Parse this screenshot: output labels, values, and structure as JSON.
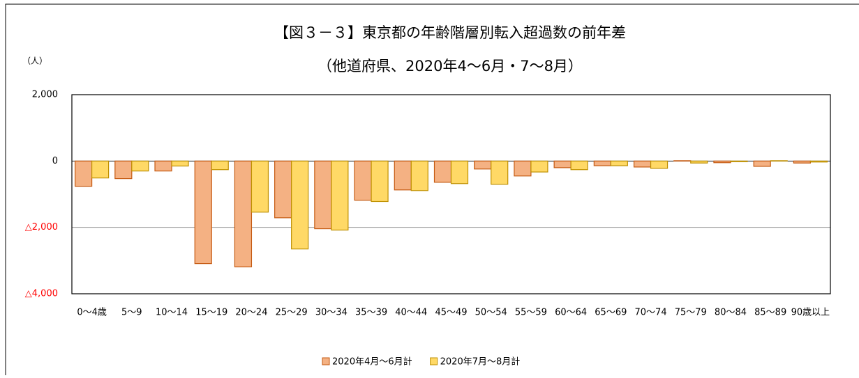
{
  "chart_data": {
    "type": "bar",
    "title": "【図３－３】東京都の年齢階層別転入超過数の前年差",
    "subtitle": "（他道府県、2020年4〜6月・7〜8月）",
    "y_label": "（人）",
    "categories": [
      "0〜4歳",
      "5〜9",
      "10〜14",
      "15〜19",
      "20〜24",
      "25〜29",
      "30〜34",
      "35〜39",
      "40〜44",
      "45〜49",
      "50〜54",
      "55〜59",
      "60〜64",
      "65〜69",
      "70〜74",
      "75〜79",
      "80〜84",
      "85〜89",
      "90歳以上"
    ],
    "series": [
      {
        "name": "2020年4月〜6月計",
        "color": "#f4b183",
        "stroke": "#c55a11",
        "values": [
          -760,
          -530,
          -300,
          -3090,
          -3190,
          -1710,
          -2040,
          -1180,
          -870,
          -640,
          -240,
          -450,
          -200,
          -140,
          -180,
          10,
          -50,
          -160,
          -60
        ]
      },
      {
        "name": "2020年7月〜8月計",
        "color": "#ffd966",
        "stroke": "#bf9000",
        "values": [
          -510,
          -300,
          -150,
          -260,
          -1540,
          -2650,
          -2080,
          -1220,
          -890,
          -680,
          -700,
          -330,
          -260,
          -140,
          -220,
          -60,
          -20,
          10,
          -30
        ]
      }
    ],
    "ylim": [
      -4000,
      2000
    ],
    "yticks": [
      {
        "value": -4000,
        "label": "△4,000"
      },
      {
        "value": -2000,
        "label": "△2,000"
      },
      0,
      {
        "value": 2000,
        "label": "2,000"
      }
    ],
    "negative_label_color": "#ff0000",
    "grid": true,
    "legend": "bottom"
  }
}
